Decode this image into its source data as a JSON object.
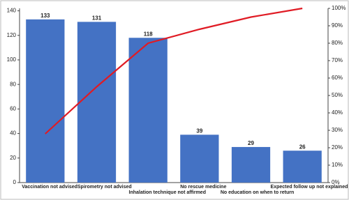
{
  "chart_data": {
    "type": "bar",
    "categories": [
      "Vaccination not advised",
      "Spirometry not advised",
      "Inhalation technique not affirmed",
      "No rescue medicine",
      "No education on when to return",
      "Expected follow up not explained"
    ],
    "values": [
      133,
      131,
      118,
      39,
      29,
      26
    ],
    "color": "#4472c4",
    "line": {
      "type": "line",
      "axis": "y2",
      "color": "#e01b24",
      "values": [
        28,
        55,
        80,
        88,
        95,
        100
      ]
    },
    "ylim": [
      0,
      142
    ],
    "yticks": [
      0,
      20,
      40,
      60,
      80,
      100,
      120,
      140
    ],
    "y2lim": [
      0,
      100
    ],
    "y2ticks": [
      {
        "value": 0,
        "label": "0%"
      },
      {
        "value": 10,
        "label": "10%"
      },
      {
        "value": 20,
        "label": "20%"
      },
      {
        "value": 30,
        "label": "30%"
      },
      {
        "value": 40,
        "label": "40%"
      },
      {
        "value": 50,
        "label": "50%"
      },
      {
        "value": 60,
        "label": "60%"
      },
      {
        "value": 70,
        "label": "70%"
      },
      {
        "value": 80,
        "label": "80%"
      },
      {
        "value": 90,
        "label": "90%"
      },
      {
        "value": 100,
        "label": "100%"
      }
    ]
  }
}
